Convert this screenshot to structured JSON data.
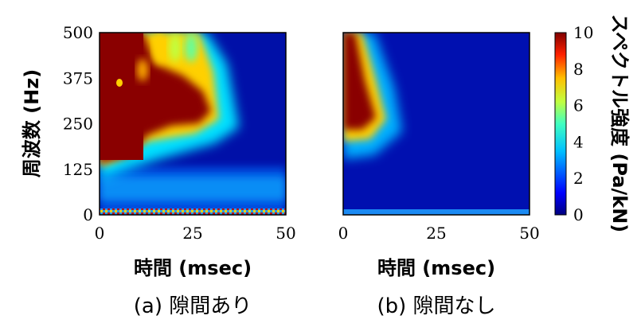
{
  "chart_data": [
    {
      "type": "heatmap",
      "caption": "(a) 隙間あり",
      "xlabel": "時間 (msec)",
      "ylabel": "周波数 (Hz)",
      "xlim": [
        0,
        50
      ],
      "ylim": [
        0,
        500
      ],
      "x_ticks": [
        "0",
        "25",
        "50"
      ],
      "y_ticks": [
        "0",
        "125",
        "250",
        "375",
        "500"
      ],
      "regions": [
        {
          "description": "saturated band at 130-500 Hz before ~15 msec, extending to ~30 msec above 250 Hz",
          "value": 10
        },
        {
          "description": "moderate band 0-125 Hz across full time range",
          "value": 2.5
        },
        {
          "description": "low-frequency noise near 0 Hz",
          "value": 6
        }
      ]
    },
    {
      "type": "heatmap",
      "caption": "(b) 隙間なし",
      "xlabel": "時間 (msec)",
      "ylabel": "",
      "xlim": [
        0,
        50
      ],
      "ylim": [
        0,
        500
      ],
      "x_ticks": [
        "0",
        "25",
        "50"
      ],
      "y_ticks": [],
      "regions": [
        {
          "description": "saturated lobe at 220-500 Hz, 0-10 msec",
          "value": 10
        },
        {
          "description": "background",
          "value": 0.5
        }
      ]
    }
  ],
  "colorbar": {
    "label": "スペクトル強度 (Pa/kN)",
    "range": [
      0,
      10
    ],
    "ticks": [
      "0",
      "2",
      "4",
      "6",
      "8",
      "10"
    ],
    "colormap": "jet"
  }
}
